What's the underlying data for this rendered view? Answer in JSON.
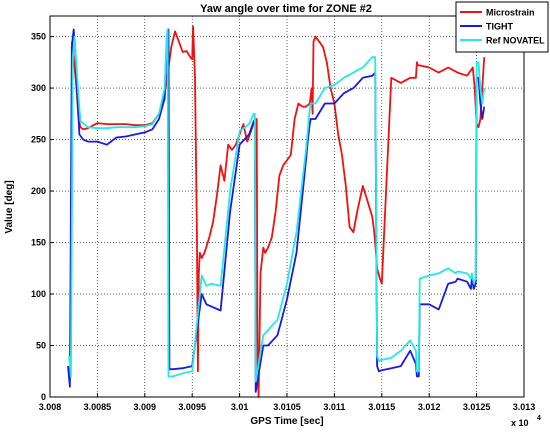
{
  "chart_data": {
    "type": "line",
    "title": "Yaw angle over time for ZONE #2",
    "xlabel": "GPS Time [sec]",
    "ylabel": "Value [deg]",
    "x_multiplier_label": "x 10",
    "x_multiplier_exponent": "4",
    "xlim": [
      3.008,
      3.013
    ],
    "ylim": [
      0,
      370
    ],
    "grid": true,
    "legend_position": "top-right",
    "x_ticks": [
      3.008,
      3.0085,
      3.009,
      3.0095,
      3.01,
      3.0105,
      3.011,
      3.0115,
      3.012,
      3.0125,
      3.013
    ],
    "x_tick_labels": [
      "3.008",
      "3.0085",
      "3.009",
      "3.0095",
      "3.01",
      "3.0105",
      "3.011",
      "3.0115",
      "3.012",
      "3.0125",
      "3.013"
    ],
    "y_ticks": [
      0,
      50,
      100,
      150,
      200,
      250,
      300,
      350
    ],
    "y_tick_labels": [
      "0",
      "50",
      "100",
      "150",
      "200",
      "250",
      "300",
      "350"
    ],
    "series": [
      {
        "name": "Microstrain",
        "color": "#ee1111",
        "x": [
          3.00823,
          3.00824,
          3.00826,
          3.00828,
          3.00829,
          3.0083,
          3.00832,
          3.00835,
          3.0084,
          3.0085,
          3.0086,
          3.0087,
          3.0088,
          3.0089,
          3.009,
          3.00908,
          3.00915,
          3.00922,
          3.00928,
          3.00932,
          3.00936,
          3.0094,
          3.00944,
          3.00948,
          3.0095,
          3.00951,
          3.00953,
          3.00955,
          3.00956,
          3.00957,
          3.00958,
          3.0096,
          3.00963,
          3.00968,
          3.00972,
          3.00976,
          3.0098,
          3.00984,
          3.00988,
          3.00992,
          3.00996,
          3.01,
          3.01004,
          3.01008,
          3.01012,
          3.01016,
          3.01018,
          3.01019,
          3.0102,
          3.01022,
          3.01025,
          3.01027,
          3.0103,
          3.01034,
          3.01038,
          3.01042,
          3.01046,
          3.0105,
          3.01054,
          3.01058,
          3.01062,
          3.01066,
          3.0107,
          3.01074,
          3.01076,
          3.01077,
          3.01078,
          3.0108,
          3.01084,
          3.01088,
          3.01092,
          3.01096,
          3.011,
          3.01104,
          3.01108,
          3.01112,
          3.01116,
          3.0112,
          3.01124,
          3.0113,
          3.01135,
          3.0114,
          3.01142,
          3.01143,
          3.01145,
          3.01148,
          3.0115,
          3.0116,
          3.0117,
          3.0118,
          3.01186,
          3.01187,
          3.01188,
          3.0119,
          3.012,
          3.0121,
          3.0122,
          3.0123,
          3.0124,
          3.01246,
          3.01248,
          3.0125,
          3.01252,
          3.01254,
          3.01256,
          3.01258
        ],
        "y": [
          345,
          335,
          320,
          300,
          285,
          272,
          262,
          260,
          261,
          266,
          265,
          265,
          265,
          264,
          264,
          266,
          275,
          300,
          340,
          355,
          345,
          335,
          336,
          330,
          328,
          360,
          310,
          160,
          25,
          120,
          140,
          135,
          140,
          155,
          170,
          195,
          225,
          210,
          245,
          240,
          245,
          255,
          265,
          248,
          258,
          270,
          270,
          25,
          0,
          120,
          145,
          140,
          145,
          155,
          180,
          215,
          225,
          230,
          235,
          270,
          285,
          282,
          282,
          285,
          300,
          275,
          345,
          350,
          345,
          340,
          325,
          300,
          285,
          255,
          235,
          205,
          165,
          160,
          180,
          205,
          190,
          175,
          160,
          150,
          125,
          115,
          110,
          310,
          305,
          310,
          310,
          325,
          322,
          322,
          320,
          315,
          320,
          315,
          312,
          320,
          300,
          265,
          262,
          270,
          300,
          330
        ]
      },
      {
        "name": "TIGHT",
        "color": "#1a1adc",
        "x": [
          3.00819,
          3.00821,
          3.00823,
          3.00825,
          3.00827,
          3.00829,
          3.00831,
          3.00835,
          3.0084,
          3.0085,
          3.0086,
          3.0087,
          3.0088,
          3.0089,
          3.009,
          3.00908,
          3.00915,
          3.00921,
          3.00924,
          3.00925,
          3.00926,
          3.0093,
          3.0094,
          3.0095,
          3.0096,
          3.00965,
          3.0097,
          3.0098,
          3.0099,
          3.01,
          3.0101,
          3.01015,
          3.01016,
          3.01017,
          3.01025,
          3.0103,
          3.0104,
          3.0105,
          3.0106,
          3.0107,
          3.01072,
          3.01074,
          3.01075,
          3.0108,
          3.0109,
          3.011,
          3.0111,
          3.0112,
          3.0113,
          3.0114,
          3.01143,
          3.01145,
          3.01147,
          3.0115,
          3.0116,
          3.0117,
          3.0118,
          3.01186,
          3.01187,
          3.01189,
          3.0119,
          3.012,
          3.0121,
          3.0122,
          3.01228,
          3.0123,
          3.0124,
          3.01244,
          3.01245,
          3.01247,
          3.01249,
          3.0125,
          3.01252,
          3.01254,
          3.01256,
          3.01258
        ],
        "y": [
          30,
          10,
          340,
          357,
          330,
          290,
          255,
          250,
          248,
          248,
          245,
          252,
          253,
          255,
          257,
          260,
          270,
          290,
          356,
          357,
          27,
          27,
          28,
          30,
          100,
          90,
          88,
          84,
          180,
          245,
          255,
          268,
          268,
          5,
          50,
          50,
          60,
          95,
          140,
          230,
          250,
          265,
          270,
          270,
          285,
          285,
          295,
          300,
          310,
          312,
          315,
          30,
          25,
          26,
          28,
          30,
          45,
          32,
          20,
          20,
          90,
          90,
          85,
          110,
          112,
          115,
          112,
          105,
          115,
          105,
          110,
          310,
          310,
          285,
          270,
          282
        ]
      },
      {
        "name": "Ref NOVATEL",
        "color": "#22e8e8",
        "x": [
          3.0082,
          3.00822,
          3.00824,
          3.00826,
          3.00828,
          3.00832,
          3.0084,
          3.0085,
          3.0086,
          3.0087,
          3.0088,
          3.0089,
          3.009,
          3.00908,
          3.00915,
          3.00921,
          3.00923,
          3.00924,
          3.00925,
          3.0093,
          3.0094,
          3.0095,
          3.0096,
          3.00965,
          3.0097,
          3.0098,
          3.0099,
          3.01,
          3.0101,
          3.01015,
          3.01016,
          3.01017,
          3.01025,
          3.0103,
          3.0104,
          3.0105,
          3.0106,
          3.0107,
          3.01072,
          3.01074,
          3.01075,
          3.0108,
          3.0109,
          3.011,
          3.0111,
          3.0112,
          3.0113,
          3.0114,
          3.01143,
          3.01145,
          3.01147,
          3.0115,
          3.0116,
          3.0117,
          3.0118,
          3.01186,
          3.01187,
          3.01189,
          3.0119,
          3.012,
          3.0121,
          3.0122,
          3.01228,
          3.0123,
          3.0124,
          3.01244,
          3.01245,
          3.01247,
          3.01249,
          3.0125,
          3.01252,
          3.01254,
          3.01256,
          3.01258
        ],
        "y": [
          40,
          20,
          330,
          350,
          320,
          268,
          262,
          261,
          261,
          262,
          262,
          262,
          263,
          265,
          275,
          300,
          350,
          357,
          20,
          20,
          23,
          25,
          118,
          108,
          110,
          108,
          200,
          258,
          265,
          275,
          275,
          15,
          60,
          65,
          75,
          110,
          160,
          240,
          260,
          280,
          285,
          285,
          300,
          303,
          310,
          315,
          320,
          330,
          330,
          40,
          35,
          36,
          38,
          45,
          55,
          45,
          25,
          25,
          115,
          118,
          120,
          125,
          120,
          122,
          120,
          115,
          120,
          110,
          115,
          325,
          325,
          300,
          285,
          300
        ]
      }
    ]
  }
}
